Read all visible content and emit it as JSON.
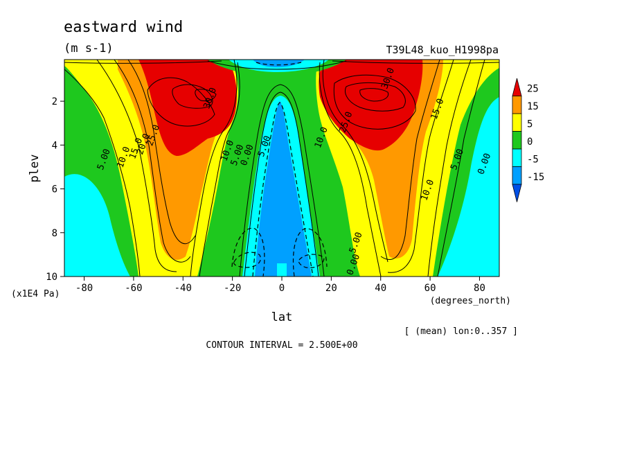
{
  "chart_data": {
    "type": "heatmap",
    "title": "eastward wind",
    "units": "(m s-1)",
    "run_label": "T39L48_kuo_H1998pa",
    "xlabel": "lat",
    "x_units": "(degrees_north)",
    "ylabel": "plev",
    "y_units": "(x1E4 Pa)",
    "mean_note": "[ (mean) lon:0..357 ]",
    "contour_interval": "CONTOUR INTERVAL = 2.500E+00",
    "xlim": [
      -88,
      88
    ],
    "ylim": [
      0.1,
      10
    ],
    "y_inverted": true,
    "x_ticks": [
      "-80",
      "-60",
      "-40",
      "-20",
      "0",
      "20",
      "40",
      "60",
      "80"
    ],
    "y_ticks": [
      "2",
      "4",
      "6",
      "8",
      "10"
    ],
    "colorbar": {
      "labels": [
        "25",
        "15",
        "5",
        "0",
        "-5",
        "-15"
      ],
      "bands": [
        {
          "from": 25,
          "to": null,
          "color": "#e60000"
        },
        {
          "from": 15,
          "to": 25,
          "color": "#ff9900"
        },
        {
          "from": 5,
          "to": 15,
          "color": "#ffff00"
        },
        {
          "from": 0,
          "to": 5,
          "color": "#1ec81e"
        },
        {
          "from": -5,
          "to": 0,
          "color": "#00ffff"
        },
        {
          "from": -15,
          "to": -5,
          "color": "#00a0ff"
        },
        {
          "from": null,
          "to": -15,
          "color": "#0050e6"
        }
      ]
    },
    "contour_labels": [
      {
        "text": "30.0",
        "lat": -28,
        "p": 1.9
      },
      {
        "text": "25.0",
        "lat": -51,
        "p": 3.6
      },
      {
        "text": "20.0",
        "lat": -55,
        "p": 4.0
      },
      {
        "text": "15.0",
        "lat": -58,
        "p": 4.2
      },
      {
        "text": "10.0",
        "lat": -63,
        "p": 4.6
      },
      {
        "text": "5.00",
        "lat": -71,
        "p": 4.7
      },
      {
        "text": "10.0",
        "lat": -21,
        "p": 4.3
      },
      {
        "text": "5.00",
        "lat": -17,
        "p": 4.5
      },
      {
        "text": "0.00",
        "lat": -13,
        "p": 4.5
      },
      {
        "text": "5.00",
        "lat": -6,
        "p": 4.1
      },
      {
        "text": "30.0",
        "lat": 44,
        "p": 1.0
      },
      {
        "text": "15.0",
        "lat": 64,
        "p": 2.4
      },
      {
        "text": "5.00",
        "lat": 72,
        "p": 4.7
      },
      {
        "text": "0.00",
        "lat": 83,
        "p": 4.9
      },
      {
        "text": "10.0",
        "lat": 60,
        "p": 6.1
      },
      {
        "text": "5.00",
        "lat": 31,
        "p": 8.5
      },
      {
        "text": "0.00",
        "lat": 30,
        "p": 9.5
      },
      {
        "text": "10.0",
        "lat": 17,
        "p": 3.7
      },
      {
        "text": "25.0",
        "lat": 27,
        "p": 3.0
      }
    ]
  }
}
